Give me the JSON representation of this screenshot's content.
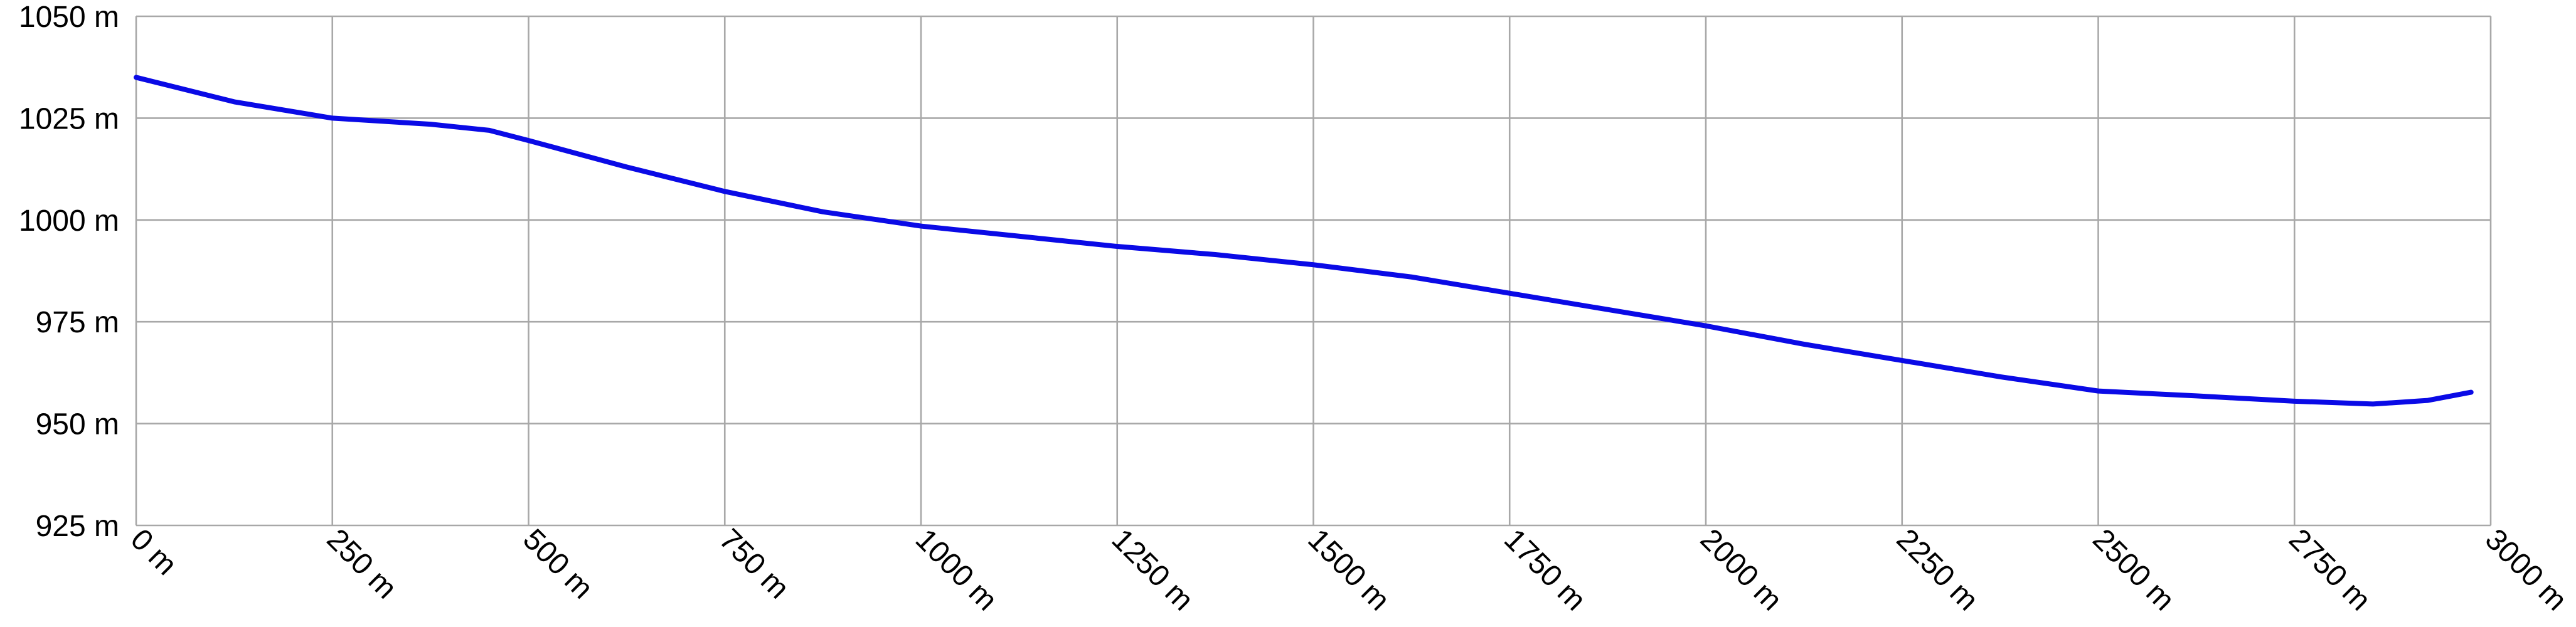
{
  "chart_data": {
    "type": "line",
    "x": [
      0,
      125,
      250,
      375,
      450,
      500,
      625,
      750,
      875,
      1000,
      1125,
      1250,
      1375,
      1500,
      1625,
      1750,
      1875,
      2000,
      2125,
      2250,
      2375,
      2500,
      2625,
      2750,
      2850,
      2920,
      2975
    ],
    "series": [
      {
        "color": "#0a0ae6",
        "values": [
          1035,
          1029,
          1025,
          1023.5,
          1022,
          1019.5,
          1013,
          1007,
          1002,
          998.5,
          996,
          993.5,
          991.5,
          989,
          986,
          982,
          978,
          974,
          969.5,
          965.5,
          961.5,
          958,
          956.8,
          955.5,
          954.8,
          955.7,
          957.7
        ]
      }
    ],
    "xlim": [
      0,
      3000
    ],
    "xticks": [
      {
        "value": 0,
        "label": "0 m"
      },
      {
        "value": 250,
        "label": "250 m"
      },
      {
        "value": 500,
        "label": "500 m"
      },
      {
        "value": 750,
        "label": "750 m"
      },
      {
        "value": 1000,
        "label": "1000 m"
      },
      {
        "value": 1250,
        "label": "1250 m"
      },
      {
        "value": 1500,
        "label": "1500 m"
      },
      {
        "value": 1750,
        "label": "1750 m"
      },
      {
        "value": 2000,
        "label": "2000 m"
      },
      {
        "value": 2250,
        "label": "2250 m"
      },
      {
        "value": 2500,
        "label": "2500 m"
      },
      {
        "value": 2750,
        "label": "2750 m"
      },
      {
        "value": 3000,
        "label": "3000 m"
      }
    ],
    "ylim": [
      925,
      1050
    ],
    "yticks": [
      {
        "value": 925,
        "label": "925 m"
      },
      {
        "value": 950,
        "label": "950 m"
      },
      {
        "value": 975,
        "label": "975 m"
      },
      {
        "value": 1000,
        "label": "1000 m"
      },
      {
        "value": 1025,
        "label": "1025 m"
      },
      {
        "value": 1050,
        "label": "1050 m"
      }
    ],
    "grid": true
  }
}
